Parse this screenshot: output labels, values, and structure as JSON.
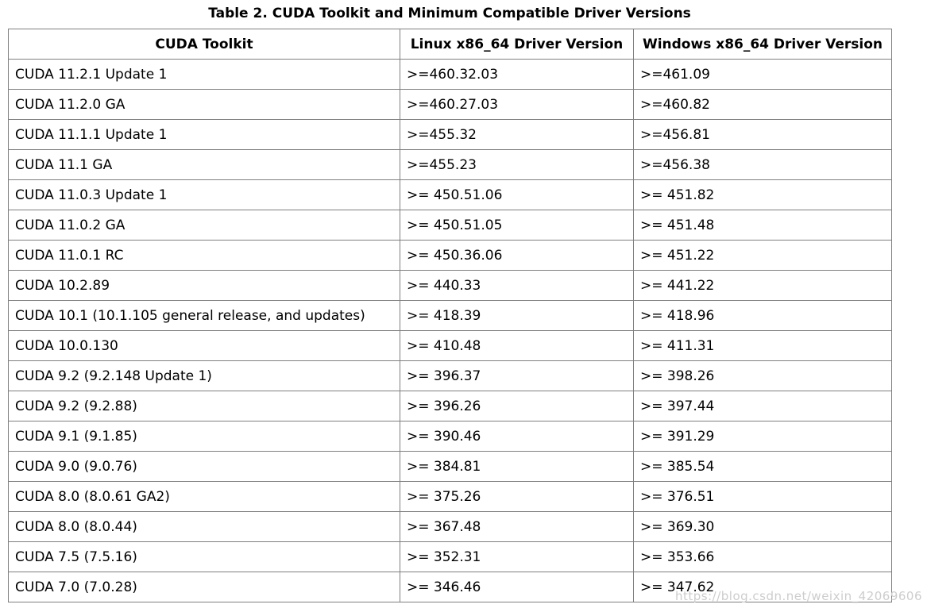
{
  "page": {
    "title": "Table 2. CUDA Toolkit and Minimum Compatible Driver Versions",
    "watermark": "https://blog.csdn.net/weixin_42069606"
  },
  "table": {
    "columns": [
      "CUDA Toolkit",
      "Linux x86_64 Driver Version",
      "Windows x86_64 Driver Version"
    ],
    "rows": [
      [
        "CUDA 11.2.1 Update 1",
        ">=460.32.03",
        ">=461.09"
      ],
      [
        "CUDA 11.2.0 GA",
        ">=460.27.03",
        ">=460.82"
      ],
      [
        "CUDA 11.1.1 Update 1",
        ">=455.32",
        ">=456.81"
      ],
      [
        "CUDA 11.1 GA",
        ">=455.23",
        ">=456.38"
      ],
      [
        "CUDA 11.0.3 Update 1",
        ">= 450.51.06",
        ">= 451.82"
      ],
      [
        "CUDA 11.0.2 GA",
        ">= 450.51.05",
        ">= 451.48"
      ],
      [
        "CUDA 11.0.1 RC",
        ">= 450.36.06",
        ">= 451.22"
      ],
      [
        "CUDA 10.2.89",
        ">= 440.33",
        ">= 441.22"
      ],
      [
        "CUDA 10.1 (10.1.105 general release, and updates)",
        ">= 418.39",
        ">= 418.96"
      ],
      [
        "CUDA 10.0.130",
        ">= 410.48",
        ">= 411.31"
      ],
      [
        "CUDA 9.2 (9.2.148 Update 1)",
        ">= 396.37",
        ">= 398.26"
      ],
      [
        "CUDA 9.2 (9.2.88)",
        ">= 396.26",
        ">= 397.44"
      ],
      [
        "CUDA 9.1 (9.1.85)",
        ">= 390.46",
        ">= 391.29"
      ],
      [
        "CUDA 9.0 (9.0.76)",
        ">= 384.81",
        ">= 385.54"
      ],
      [
        "CUDA 8.0 (8.0.61 GA2)",
        ">= 375.26",
        ">= 376.51"
      ],
      [
        "CUDA 8.0 (8.0.44)",
        ">= 367.48",
        ">= 369.30"
      ],
      [
        "CUDA 7.5 (7.5.16)",
        ">= 352.31",
        ">= 353.66"
      ],
      [
        "CUDA 7.0 (7.0.28)",
        ">= 346.46",
        ">= 347.62"
      ]
    ]
  },
  "colors": {
    "background": "#ffffff",
    "text": "#000000",
    "border": "#7f7f7f",
    "watermark": "#cdcdcd"
  }
}
